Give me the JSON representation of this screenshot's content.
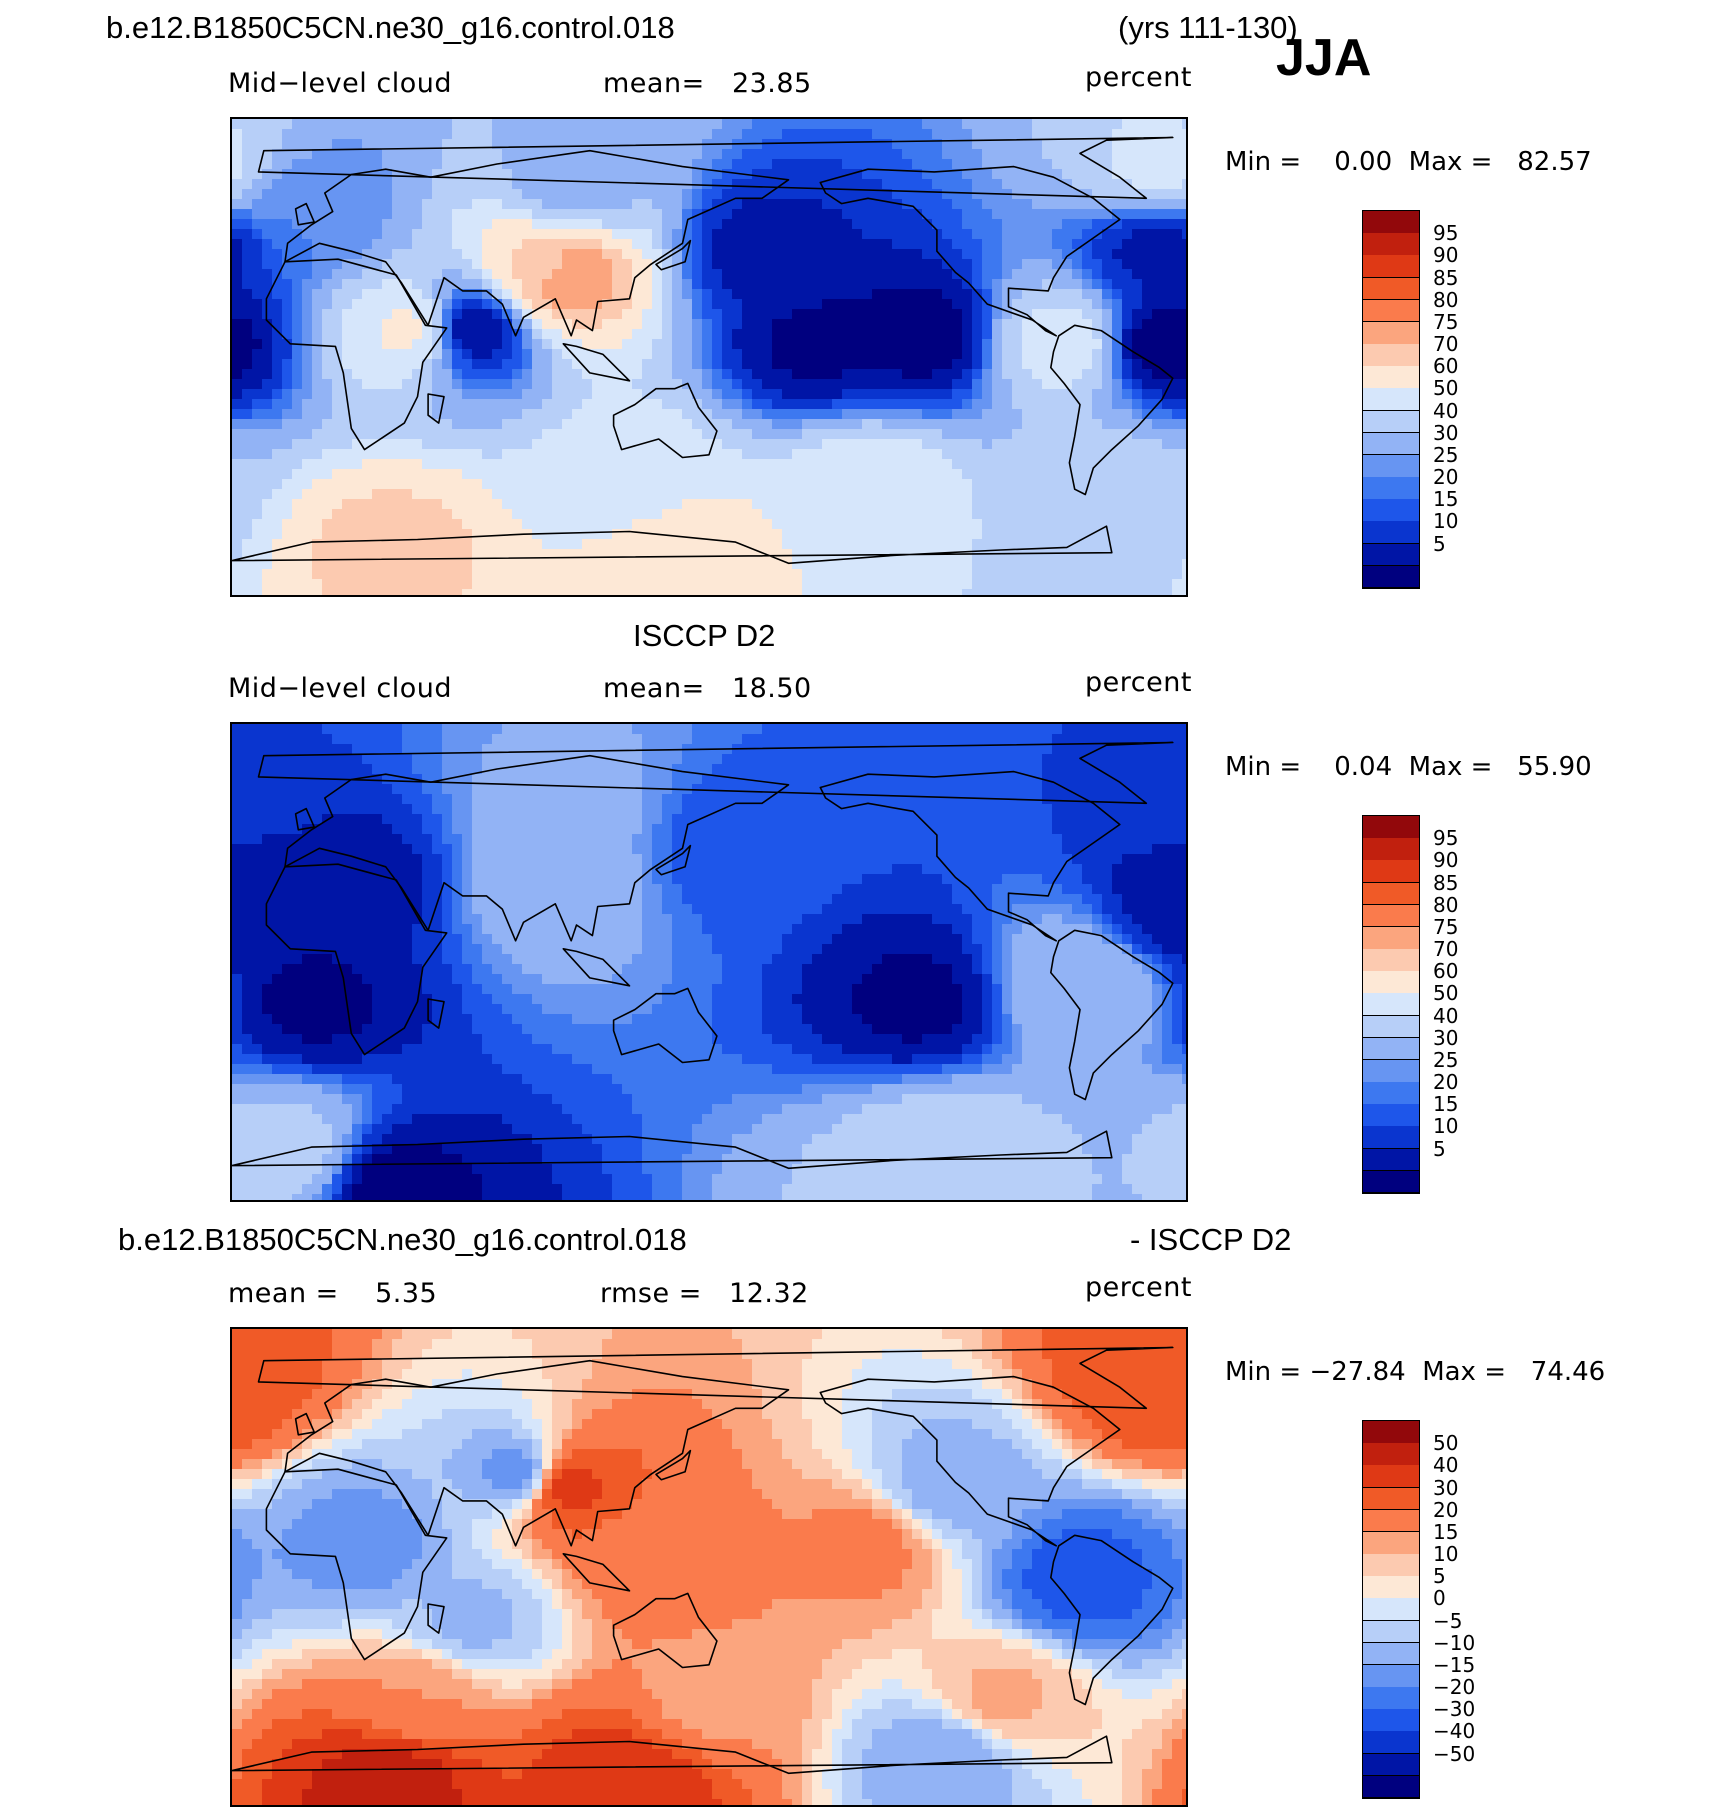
{
  "header": {
    "case_title": "b.e12.B1850C5CN.ne30_g16.control.018",
    "years": "(yrs 111-130)",
    "season": "JJA"
  },
  "colors": {
    "cloud_scale": [
      "#00007f",
      "#0015a6",
      "#0a35cf",
      "#1e56ea",
      "#3d78f0",
      "#6795f2",
      "#92b3f5",
      "#b7cff8",
      "#d6e6fb",
      "#fde8d6",
      "#fccab0",
      "#fba57e",
      "#fa7b4c",
      "#f05a27",
      "#df3915",
      "#c1200e",
      "#92080b"
    ],
    "diff_scale": [
      "#00007f",
      "#0015a6",
      "#0a35cf",
      "#1e56ea",
      "#3d78f0",
      "#6795f2",
      "#92b3f5",
      "#b7cff8",
      "#d6e6fb",
      "#fde8d6",
      "#fccab0",
      "#fba57e",
      "#fa7b4c",
      "#f05a27",
      "#df3915",
      "#c1200e",
      "#92080b"
    ]
  },
  "chart_data": [
    {
      "type": "heatmap",
      "title": "",
      "label_left": "Mid−level cloud",
      "label_center": "mean=   23.85",
      "units": "percent",
      "mean": 23.85,
      "min": 0.0,
      "max": 82.57,
      "minmax_text": "Min =    0.00  Max =   82.57",
      "levels": [
        "95",
        "90",
        "85",
        "80",
        "75",
        "70",
        "60",
        "50",
        "40",
        "30",
        "25",
        "20",
        "15",
        "10",
        "5"
      ],
      "features": [
        {
          "lon": -40,
          "lat": 5,
          "value": 2
        },
        {
          "lon": -130,
          "lat": 8,
          "value": 3
        },
        {
          "lon": -170,
          "lat": 5,
          "value": 4
        },
        {
          "lon": 60,
          "lat": 10,
          "value": 5
        },
        {
          "lon": 170,
          "lat": 40,
          "value": 8
        },
        {
          "lon": -40,
          "lat": 40,
          "value": 8
        },
        {
          "lon": 90,
          "lat": 33,
          "value": 70
        },
        {
          "lon": 95,
          "lat": 31,
          "value": 82
        },
        {
          "lon": 38,
          "lat": 10,
          "value": 62
        },
        {
          "lon": -75,
          "lat": 5,
          "value": 55
        },
        {
          "lon": 30,
          "lat": -72,
          "value": 72
        },
        {
          "lon": 140,
          "lat": -75,
          "value": 66
        },
        {
          "lon": 120,
          "lat": -45,
          "value": 55
        },
        {
          "lon": -150,
          "lat": -50,
          "value": 58
        },
        {
          "lon": -60,
          "lat": -50,
          "value": 45
        },
        {
          "lon": 100,
          "lat": 65,
          "value": 35
        },
        {
          "lon": -40,
          "lat": 72,
          "value": 52
        },
        {
          "lon": 0,
          "lat": 55,
          "value": 25
        }
      ]
    },
    {
      "type": "heatmap",
      "title": "ISCCP D2",
      "label_left": "Mid−level cloud",
      "label_center": "mean=   18.50",
      "units": "percent",
      "mean": 18.5,
      "min": 0.04,
      "max": 55.9,
      "minmax_text": "Min =    0.04  Max =   55.90",
      "levels": [
        "95",
        "90",
        "85",
        "80",
        "75",
        "70",
        "60",
        "50",
        "40",
        "30",
        "25",
        "20",
        "15",
        "10",
        "5"
      ],
      "features": [
        {
          "lon": -130,
          "lat": -15,
          "value": 4
        },
        {
          "lon": 0,
          "lat": -15,
          "value": 4
        },
        {
          "lon": 30,
          "lat": -85,
          "value": 3
        },
        {
          "lon": -30,
          "lat": 20,
          "value": 6
        },
        {
          "lon": -70,
          "lat": -10,
          "value": 40
        },
        {
          "lon": 90,
          "lat": 33,
          "value": 38
        },
        {
          "lon": -40,
          "lat": 72,
          "value": 15
        },
        {
          "lon": -10,
          "lat": -72,
          "value": 45
        },
        {
          "lon": -120,
          "lat": -72,
          "value": 48
        },
        {
          "lon": 100,
          "lat": 60,
          "value": 32
        },
        {
          "lon": 160,
          "lat": 45,
          "value": 16
        },
        {
          "lon": 20,
          "lat": 30,
          "value": 8
        }
      ]
    },
    {
      "type": "heatmap",
      "title": "b.e12.B1850C5CN.ne30_g16.control.018",
      "title_right": "- ISCCP D2",
      "label_left": "mean =    5.35",
      "label_center": "rmse =   12.32",
      "units": "percent",
      "mean": 5.35,
      "rmse": 12.32,
      "min": -27.84,
      "max": 74.46,
      "minmax_text": "Min = −27.84  Max =   74.46",
      "levels": [
        "50",
        "40",
        "30",
        "20",
        "15",
        "10",
        "5",
        "0",
        "−5",
        "−10",
        "−15",
        "−20",
        "−30",
        "−40",
        "−50"
      ],
      "features": [
        {
          "lon": 30,
          "lat": -80,
          "value": 55
        },
        {
          "lon": 120,
          "lat": -82,
          "value": 48
        },
        {
          "lon": -40,
          "lat": 72,
          "value": 38
        },
        {
          "lon": 95,
          "lat": 31,
          "value": 45
        },
        {
          "lon": 130,
          "lat": 5,
          "value": 25
        },
        {
          "lon": -150,
          "lat": 8,
          "value": 22
        },
        {
          "lon": -70,
          "lat": -5,
          "value": -22
        },
        {
          "lon": 80,
          "lat": 35,
          "value": -15
        },
        {
          "lon": 20,
          "lat": 8,
          "value": -12
        },
        {
          "lon": -120,
          "lat": 30,
          "value": -8
        },
        {
          "lon": 60,
          "lat": -20,
          "value": -6
        },
        {
          "lon": 40,
          "lat": -50,
          "value": 20
        },
        {
          "lon": 150,
          "lat": -50,
          "value": 18
        },
        {
          "lon": -100,
          "lat": -50,
          "value": 16
        },
        {
          "lon": -120,
          "lat": -72,
          "value": -10
        }
      ]
    }
  ]
}
